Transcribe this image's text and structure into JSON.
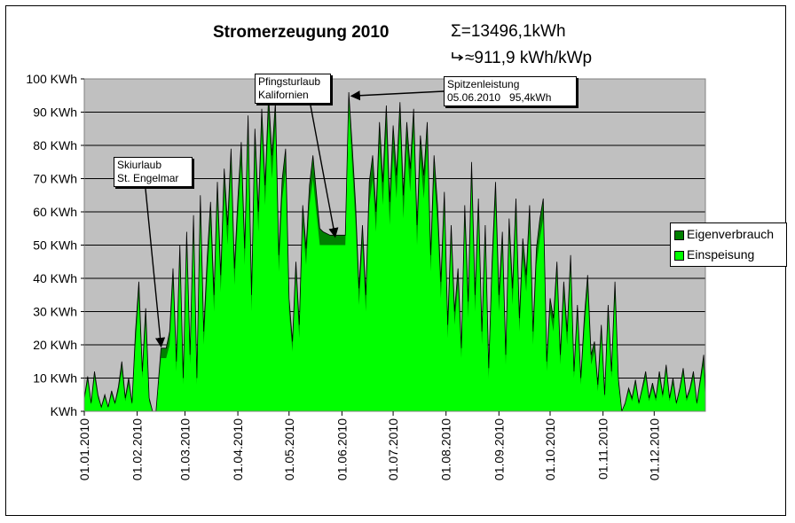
{
  "chart_data": {
    "type": "area",
    "title": "Stromerzeugung 2010",
    "sum_text": "Σ=13496,1kWh",
    "yield_text": "≈911,9 kWh/kWp",
    "yield_icon": "arrow-return-icon",
    "y_unit": "KWh",
    "ylim": [
      0,
      100
    ],
    "y_ticks": [
      "KWh",
      "10 KWh",
      "20 KWh",
      "30 KWh",
      "40 KWh",
      "50 KWh",
      "60 KWh",
      "70 KWh",
      "80 KWh",
      "90 KWh",
      "100 KWh"
    ],
    "x_ticks": [
      "01.01.2010",
      "01.02.2010",
      "01.03.2010",
      "01.04.2010",
      "01.05.2010",
      "01.06.2010",
      "01.07.2010",
      "01.08.2010",
      "01.09.2010",
      "01.10.2010",
      "01.11.2010",
      "01.12.2010"
    ],
    "x_tick_days": [
      0,
      31,
      59,
      90,
      120,
      151,
      181,
      212,
      243,
      273,
      304,
      334
    ],
    "days_in_year": 365,
    "grid": true,
    "plot_background": "#c0c0c0",
    "legend_position": "right",
    "series": [
      {
        "name": "Eigenverbrauch",
        "color": "#008000"
      },
      {
        "name": "Einspeisung",
        "color": "#00ff00"
      }
    ],
    "annotations": [
      {
        "lines": [
          "Skiurlaub",
          "St. Engelmar"
        ],
        "date": "15.02.2010",
        "value": 19
      },
      {
        "lines": [
          "Pfingsturlaub",
          "Kalifornien"
        ],
        "date": "28.05.2010",
        "value": 52
      },
      {
        "lines": [
          "Spitzenleistung",
          "05.06.2010   95,4kWh"
        ],
        "date": "05.06.2010",
        "value": 95.4
      }
    ],
    "points": [
      [
        "01.01",
        3,
        1
      ],
      [
        "03.01",
        9,
        1.5
      ],
      [
        "05.01",
        2,
        0.5
      ],
      [
        "07.01",
        10,
        2
      ],
      [
        "09.01",
        4,
        1
      ],
      [
        "11.01",
        1,
        0.3
      ],
      [
        "13.01",
        4,
        1
      ],
      [
        "15.01",
        1,
        0.3
      ],
      [
        "17.01",
        5,
        1.2
      ],
      [
        "19.01",
        2,
        0.5
      ],
      [
        "21.01",
        6,
        1.5
      ],
      [
        "23.01",
        12,
        3
      ],
      [
        "25.01",
        3,
        1
      ],
      [
        "27.01",
        8,
        2
      ],
      [
        "29.01",
        2,
        0.5
      ],
      [
        "31.01",
        20,
        4
      ],
      [
        "02.02",
        34,
        5
      ],
      [
        "04.02",
        10,
        2
      ],
      [
        "06.02",
        26,
        5
      ],
      [
        "08.02",
        3,
        1
      ],
      [
        "10.02",
        0,
        0
      ],
      [
        "12.02",
        0,
        0
      ],
      [
        "15.02",
        16,
        3
      ],
      [
        "18.02",
        16,
        3
      ],
      [
        "20.02",
        20,
        4
      ],
      [
        "22.02",
        38,
        5
      ],
      [
        "24.02",
        12,
        3
      ],
      [
        "26.02",
        44,
        6
      ],
      [
        "28.02",
        8,
        2
      ],
      [
        "02.03",
        48,
        6
      ],
      [
        "04.03",
        14,
        3
      ],
      [
        "06.03",
        52,
        7
      ],
      [
        "08.03",
        8,
        2
      ],
      [
        "10.03",
        58,
        7
      ],
      [
        "12.03",
        20,
        4
      ],
      [
        "14.03",
        40,
        6
      ],
      [
        "16.03",
        56,
        7
      ],
      [
        "18.03",
        30,
        5
      ],
      [
        "20.03",
        62,
        7
      ],
      [
        "22.03",
        36,
        5
      ],
      [
        "24.03",
        66,
        7
      ],
      [
        "26.03",
        50,
        6
      ],
      [
        "28.03",
        72,
        7
      ],
      [
        "30.03",
        38,
        5
      ],
      [
        "01.04",
        58,
        6
      ],
      [
        "03.04",
        74,
        7
      ],
      [
        "05.04",
        44,
        5
      ],
      [
        "07.04",
        82,
        7
      ],
      [
        "09.04",
        30,
        5
      ],
      [
        "11.04",
        78,
        7
      ],
      [
        "13.04",
        54,
        6
      ],
      [
        "15.04",
        84,
        7
      ],
      [
        "17.04",
        62,
        6
      ],
      [
        "19.04",
        88,
        7
      ],
      [
        "21.04",
        70,
        7
      ],
      [
        "23.04",
        86,
        7
      ],
      [
        "25.04",
        42,
        5
      ],
      [
        "27.04",
        64,
        6
      ],
      [
        "29.04",
        72,
        7
      ],
      [
        "01.05",
        30,
        4
      ],
      [
        "03.05",
        18,
        3
      ],
      [
        "05.05",
        40,
        5
      ],
      [
        "07.05",
        22,
        4
      ],
      [
        "09.05",
        56,
        6
      ],
      [
        "11.05",
        44,
        5
      ],
      [
        "13.05",
        62,
        6
      ],
      [
        "15.05",
        70,
        7
      ],
      [
        "17.05",
        60,
        6
      ],
      [
        "19.05",
        50,
        5
      ],
      [
        "21.05",
        50,
        4
      ],
      [
        "25.05",
        50,
        3
      ],
      [
        "29.05",
        50,
        3
      ],
      [
        "01.06",
        50,
        3
      ],
      [
        "03.06",
        50,
        3
      ],
      [
        "05.06",
        92,
        4
      ],
      [
        "07.06",
        74,
        6
      ],
      [
        "09.06",
        56,
        6
      ],
      [
        "11.06",
        32,
        5
      ],
      [
        "13.06",
        50,
        6
      ],
      [
        "15.06",
        30,
        5
      ],
      [
        "17.06",
        62,
        7
      ],
      [
        "19.06",
        70,
        7
      ],
      [
        "21.06",
        54,
        6
      ],
      [
        "23.06",
        80,
        7
      ],
      [
        "25.06",
        62,
        7
      ],
      [
        "27.06",
        84,
        8
      ],
      [
        "29.06",
        56,
        7
      ],
      [
        "01.07",
        78,
        8
      ],
      [
        "03.07",
        64,
        7
      ],
      [
        "05.07",
        86,
        7
      ],
      [
        "07.07",
        58,
        7
      ],
      [
        "09.07",
        80,
        7
      ],
      [
        "11.07",
        66,
        7
      ],
      [
        "13.07",
        84,
        7
      ],
      [
        "15.07",
        50,
        6
      ],
      [
        "17.07",
        76,
        7
      ],
      [
        "19.07",
        64,
        7
      ],
      [
        "21.07",
        80,
        7
      ],
      [
        "23.07",
        42,
        5
      ],
      [
        "25.07",
        70,
        7
      ],
      [
        "27.07",
        56,
        6
      ],
      [
        "29.07",
        34,
        5
      ],
      [
        "31.07",
        60,
        6
      ],
      [
        "02.08",
        22,
        4
      ],
      [
        "04.08",
        50,
        6
      ],
      [
        "06.08",
        26,
        4
      ],
      [
        "08.08",
        38,
        5
      ],
      [
        "10.08",
        16,
        3
      ],
      [
        "12.08",
        56,
        6
      ],
      [
        "14.08",
        28,
        5
      ],
      [
        "16.08",
        68,
        7
      ],
      [
        "18.08",
        30,
        5
      ],
      [
        "20.08",
        58,
        6
      ],
      [
        "22.08",
        20,
        4
      ],
      [
        "24.08",
        50,
        6
      ],
      [
        "26.08",
        10,
        3
      ],
      [
        "28.08",
        40,
        5
      ],
      [
        "30.08",
        62,
        7
      ],
      [
        "01.09",
        30,
        5
      ],
      [
        "03.09",
        48,
        6
      ],
      [
        "05.09",
        14,
        3
      ],
      [
        "07.09",
        52,
        6
      ],
      [
        "09.09",
        32,
        5
      ],
      [
        "11.09",
        58,
        6
      ],
      [
        "13.09",
        24,
        4
      ],
      [
        "15.09",
        46,
        6
      ],
      [
        "17.09",
        36,
        5
      ],
      [
        "19.09",
        56,
        6
      ],
      [
        "21.09",
        20,
        4
      ],
      [
        "23.09",
        44,
        5
      ],
      [
        "25.09",
        52,
        6
      ],
      [
        "27.09",
        58,
        6
      ],
      [
        "29.09",
        12,
        3
      ],
      [
        "01.10",
        30,
        4
      ],
      [
        "03.10",
        24,
        4
      ],
      [
        "05.10",
        40,
        5
      ],
      [
        "07.10",
        14,
        3
      ],
      [
        "09.10",
        34,
        5
      ],
      [
        "11.10",
        20,
        4
      ],
      [
        "13.10",
        42,
        5
      ],
      [
        "15.10",
        10,
        2
      ],
      [
        "17.10",
        28,
        4
      ],
      [
        "19.10",
        8,
        2
      ],
      [
        "21.10",
        24,
        4
      ],
      [
        "23.10",
        36,
        5
      ],
      [
        "25.10",
        14,
        3
      ],
      [
        "27.10",
        18,
        3
      ],
      [
        "29.10",
        6,
        2
      ],
      [
        "31.10",
        22,
        4
      ],
      [
        "02.11",
        4,
        1
      ],
      [
        "04.11",
        28,
        4
      ],
      [
        "06.11",
        10,
        2
      ],
      [
        "08.11",
        34,
        5
      ],
      [
        "10.11",
        8,
        2
      ],
      [
        "12.11",
        0,
        0
      ],
      [
        "14.11",
        2,
        0.5
      ],
      [
        "16.11",
        6,
        1
      ],
      [
        "18.11",
        3,
        1
      ],
      [
        "20.11",
        8,
        1.5
      ],
      [
        "22.11",
        2,
        0.5
      ],
      [
        "24.11",
        6,
        1
      ],
      [
        "26.11",
        10,
        2
      ],
      [
        "28.11",
        3,
        1
      ],
      [
        "30.11",
        7,
        1.5
      ],
      [
        "02.12",
        3,
        1
      ],
      [
        "04.12",
        10,
        2
      ],
      [
        "06.12",
        4,
        1
      ],
      [
        "08.12",
        12,
        2
      ],
      [
        "10.12",
        3,
        1
      ],
      [
        "12.12",
        8,
        2
      ],
      [
        "14.12",
        2,
        0.5
      ],
      [
        "16.12",
        6,
        1
      ],
      [
        "18.12",
        11,
        2
      ],
      [
        "20.12",
        3,
        1
      ],
      [
        "22.12",
        6,
        1
      ],
      [
        "24.12",
        10,
        2
      ],
      [
        "26.12",
        2,
        0.5
      ],
      [
        "28.12",
        8,
        1.5
      ],
      [
        "30.12",
        14,
        3
      ],
      [
        "31.12",
        4,
        1
      ]
    ]
  }
}
